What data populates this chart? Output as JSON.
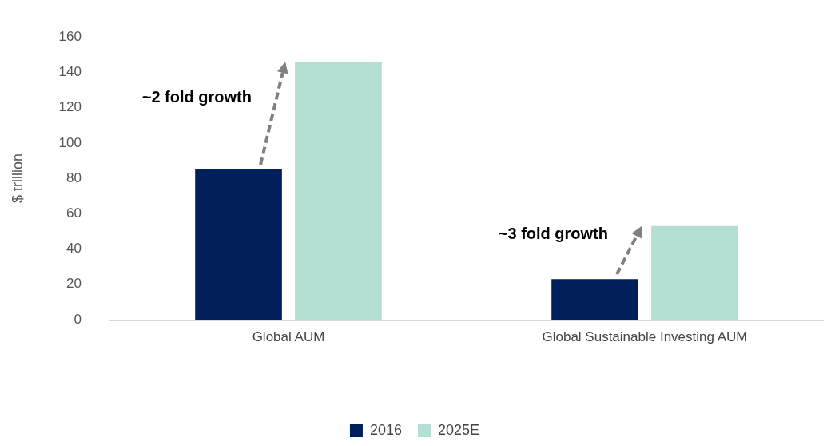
{
  "chart_data": {
    "type": "bar",
    "ylabel": "$ trillion",
    "categories": [
      "Global AUM",
      "Global Sustainable Investing AUM"
    ],
    "series": [
      {
        "name": "2016",
        "color": "#001f5b",
        "values": [
          85,
          23
        ]
      },
      {
        "name": "2025E",
        "color": "#b3e0d2",
        "values": [
          146,
          53
        ]
      }
    ],
    "ylim": [
      0,
      160
    ],
    "yticks": [
      0,
      20,
      40,
      60,
      80,
      100,
      120,
      140,
      160
    ],
    "grid": false,
    "legend": "bottom",
    "annotations": [
      "~2 fold growth",
      "~3 fold growth"
    ]
  }
}
